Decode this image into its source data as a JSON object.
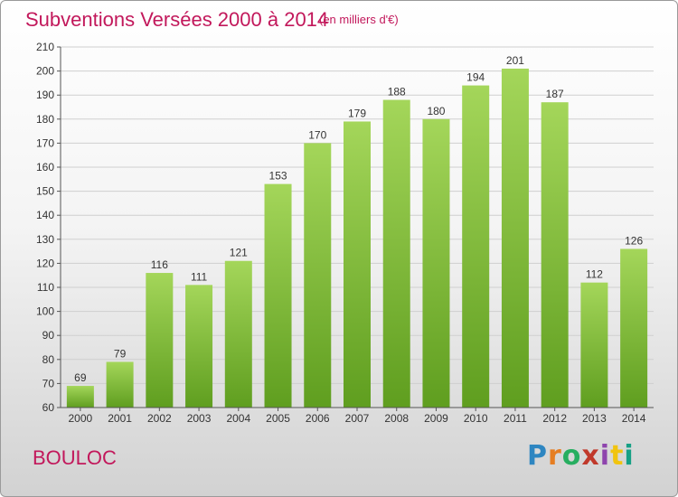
{
  "header": {
    "title": "Subventions Versées 2000 à 2014",
    "subtitle": "(en milliers d'€)"
  },
  "footer": {
    "commune": "BOULOC",
    "logo": {
      "text": "Proxiti",
      "letters": [
        {
          "char": "P",
          "color": "#2e86c1"
        },
        {
          "char": "r",
          "color": "#e67e22"
        },
        {
          "char": "o",
          "color": "#27ae60"
        },
        {
          "char": "x",
          "color": "#c0392b"
        },
        {
          "char": "i",
          "color": "#8e44ad"
        },
        {
          "char": "t",
          "color": "#f1c40f"
        },
        {
          "char": "i",
          "color": "#16a085"
        }
      ]
    }
  },
  "colors": {
    "accent": "#c2185b",
    "bar_top": "#a4d65a",
    "bar_bottom": "#5f9e1f",
    "grid": "#cfcfcf",
    "axis": "#555555"
  },
  "chart_data": {
    "type": "bar",
    "categories": [
      "2000",
      "2001",
      "2002",
      "2003",
      "2004",
      "2005",
      "2006",
      "2007",
      "2008",
      "2009",
      "2010",
      "2011",
      "2012",
      "2013",
      "2014"
    ],
    "values": [
      69,
      79,
      116,
      111,
      121,
      153,
      170,
      179,
      188,
      180,
      194,
      201,
      187,
      112,
      126
    ],
    "title": "Subventions Versées 2000 à 2014",
    "subtitle": "(en milliers d'€)",
    "xlabel": "",
    "ylabel": "",
    "ylim": [
      60,
      210
    ],
    "yticks": [
      60,
      70,
      80,
      90,
      100,
      110,
      120,
      130,
      140,
      150,
      160,
      170,
      180,
      190,
      200,
      210
    ],
    "grid": true,
    "data_labels": true
  }
}
